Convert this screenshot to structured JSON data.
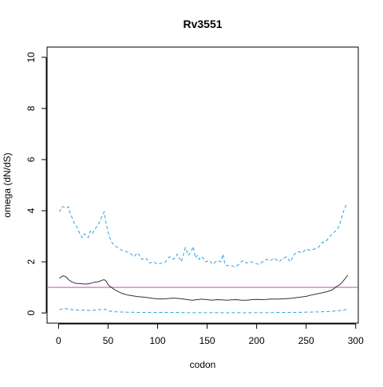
{
  "chart_data": {
    "type": "line",
    "title": "Rv3551",
    "xlabel": "codon",
    "ylabel": "omega (dN/dS)",
    "xlim": [
      -11.6,
      302.6
    ],
    "ylim": [
      -0.4,
      10.4
    ],
    "xticks": [
      0,
      50,
      100,
      150,
      200,
      250,
      300
    ],
    "yticks": [
      0,
      2,
      4,
      6,
      8,
      10
    ],
    "grid": false,
    "legend": "none",
    "reference_line": {
      "y": 1,
      "color": "#c050c0"
    },
    "series": [
      {
        "role": "upper",
        "color": "#29a3e0",
        "dash": "dashed",
        "x": [
          1,
          3,
          5,
          8,
          10,
          12,
          14,
          16,
          18,
          20,
          22,
          24,
          26,
          28,
          30,
          32,
          34,
          36,
          38,
          40,
          42,
          44,
          46,
          48,
          50,
          53,
          56,
          60,
          64,
          68,
          72,
          76,
          80,
          84,
          88,
          92,
          96,
          100,
          104,
          108,
          112,
          116,
          120,
          124,
          128,
          131,
          134,
          136,
          138,
          140,
          142,
          145,
          148,
          152,
          156,
          160,
          164,
          166,
          168,
          170,
          174,
          178,
          182,
          186,
          190,
          194,
          198,
          202,
          206,
          210,
          214,
          218,
          222,
          226,
          230,
          234,
          238,
          242,
          246,
          250,
          254,
          258,
          262,
          266,
          270,
          274,
          278,
          282,
          284,
          286,
          288,
          290,
          292
        ],
        "y": [
          3.95,
          4.15,
          4.15,
          4.1,
          4.15,
          3.85,
          3.7,
          3.5,
          3.4,
          3.25,
          3.05,
          2.95,
          3.1,
          3.0,
          2.95,
          3.2,
          3.1,
          3.25,
          3.35,
          3.45,
          3.6,
          3.8,
          3.95,
          3.5,
          3.15,
          2.8,
          2.65,
          2.55,
          2.45,
          2.4,
          2.35,
          2.2,
          2.35,
          2.1,
          2.15,
          1.95,
          2.0,
          1.9,
          1.95,
          2.0,
          2.2,
          2.1,
          2.3,
          2.0,
          2.55,
          2.25,
          2.4,
          2.6,
          2.15,
          2.25,
          2.1,
          2.2,
          2.0,
          2.05,
          1.9,
          2.05,
          2.0,
          2.3,
          1.9,
          1.85,
          1.85,
          1.8,
          1.9,
          2.05,
          1.95,
          2.0,
          1.95,
          1.9,
          2.0,
          2.1,
          2.05,
          2.15,
          2.0,
          2.1,
          2.2,
          2.0,
          2.3,
          2.4,
          2.35,
          2.5,
          2.45,
          2.5,
          2.55,
          2.75,
          2.8,
          3.0,
          3.15,
          3.3,
          3.5,
          3.75,
          4.0,
          4.2,
          4.2
        ]
      },
      {
        "role": "omega",
        "color": "#333333",
        "dash": "solid",
        "x": [
          1,
          3,
          5,
          8,
          10,
          12,
          14,
          16,
          18,
          20,
          24,
          28,
          32,
          36,
          40,
          44,
          46,
          48,
          50,
          54,
          58,
          62,
          66,
          70,
          75,
          80,
          85,
          90,
          95,
          100,
          105,
          110,
          115,
          120,
          125,
          130,
          135,
          140,
          145,
          150,
          155,
          160,
          165,
          170,
          175,
          180,
          185,
          190,
          195,
          200,
          205,
          210,
          215,
          220,
          225,
          230,
          235,
          240,
          245,
          250,
          255,
          260,
          265,
          270,
          275,
          278,
          280,
          283,
          286,
          288,
          290,
          292
        ],
        "y": [
          1.35,
          1.42,
          1.45,
          1.4,
          1.3,
          1.25,
          1.2,
          1.18,
          1.15,
          1.15,
          1.14,
          1.13,
          1.15,
          1.2,
          1.22,
          1.28,
          1.3,
          1.25,
          1.1,
          0.98,
          0.88,
          0.8,
          0.74,
          0.7,
          0.67,
          0.64,
          0.62,
          0.6,
          0.57,
          0.55,
          0.55,
          0.56,
          0.58,
          0.57,
          0.55,
          0.52,
          0.5,
          0.52,
          0.54,
          0.52,
          0.5,
          0.52,
          0.51,
          0.5,
          0.51,
          0.52,
          0.5,
          0.5,
          0.52,
          0.53,
          0.52,
          0.53,
          0.55,
          0.54,
          0.55,
          0.56,
          0.57,
          0.6,
          0.62,
          0.65,
          0.7,
          0.74,
          0.78,
          0.82,
          0.88,
          0.95,
          1.02,
          1.08,
          1.18,
          1.28,
          1.38,
          1.48
        ]
      },
      {
        "role": "lower",
        "color": "#29a3e0",
        "dash": "dashed",
        "x": [
          1,
          5,
          10,
          15,
          20,
          25,
          30,
          35,
          40,
          45,
          48,
          50,
          55,
          60,
          70,
          80,
          90,
          100,
          110,
          120,
          130,
          140,
          150,
          160,
          170,
          180,
          190,
          200,
          210,
          220,
          230,
          240,
          250,
          260,
          270,
          275,
          280,
          285,
          290,
          292
        ],
        "y": [
          0.12,
          0.18,
          0.15,
          0.12,
          0.11,
          0.11,
          0.1,
          0.11,
          0.12,
          0.15,
          0.13,
          0.08,
          0.05,
          0.04,
          0.03,
          0.02,
          0.02,
          0.02,
          0.02,
          0.02,
          0.01,
          0.01,
          0.01,
          0.01,
          0.01,
          0.01,
          0.01,
          0.01,
          0.01,
          0.02,
          0.02,
          0.02,
          0.03,
          0.04,
          0.05,
          0.06,
          0.08,
          0.1,
          0.13,
          0.15
        ]
      }
    ]
  }
}
